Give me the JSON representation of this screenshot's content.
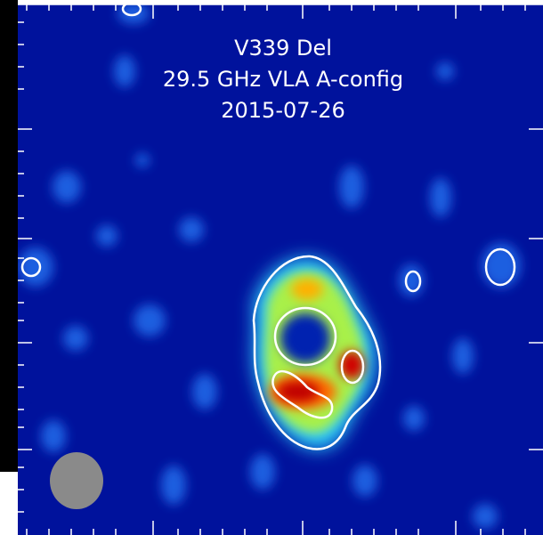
{
  "title_lines": [
    "V339 Del",
    "29.5 GHz VLA A-config",
    "2015-07-26"
  ]
}
